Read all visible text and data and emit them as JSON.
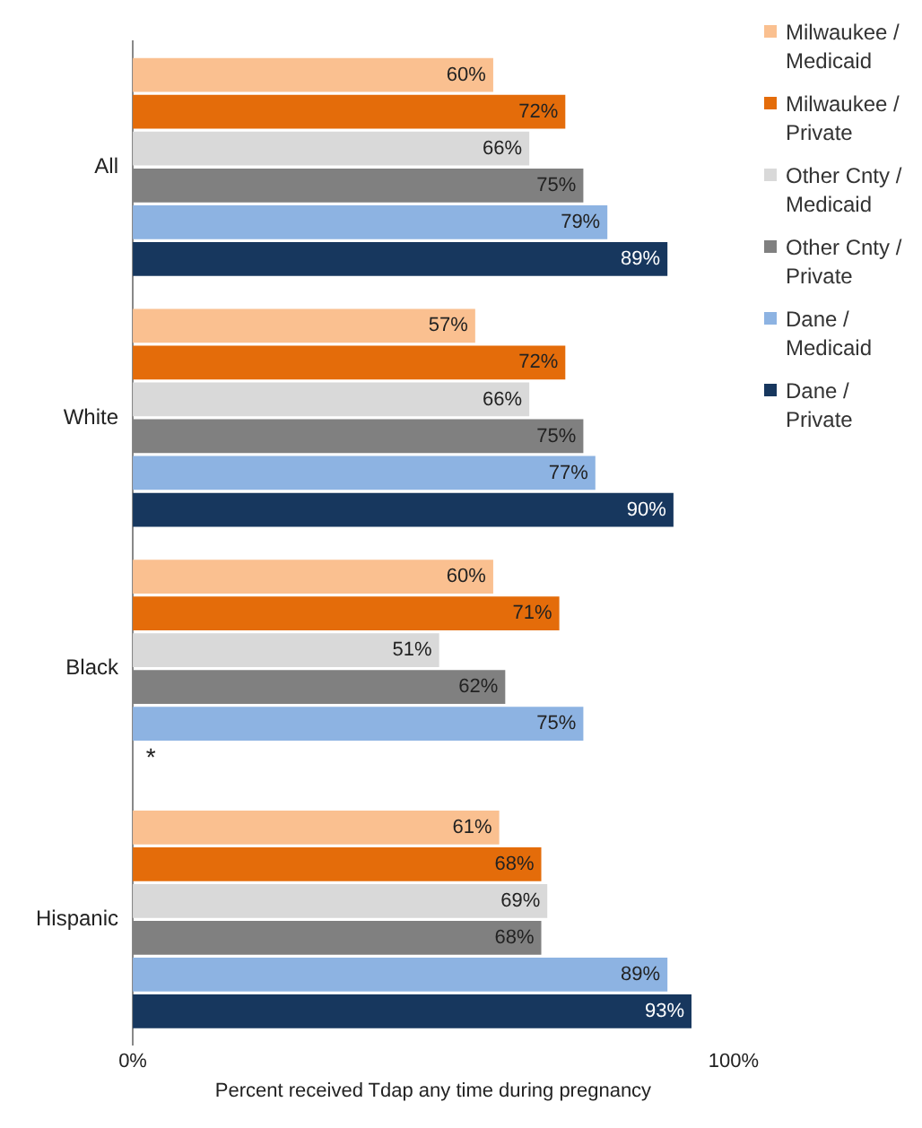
{
  "chart_data": {
    "type": "bar",
    "orientation": "horizontal",
    "categories": [
      "All",
      "White",
      "Black",
      "Hispanic"
    ],
    "xlabel": "Percent received Tdap any time during pregnancy",
    "xlim": [
      0,
      100
    ],
    "xticks": [
      {
        "value": 0,
        "label": "0%"
      },
      {
        "value": 100,
        "label": "100%"
      }
    ],
    "grid": false,
    "legend": "right",
    "series": [
      {
        "name": "Milwaukee / Medicaid",
        "color": "#fac090",
        "values": [
          60,
          57,
          60,
          61
        ],
        "value_labels": [
          "60%",
          "57%",
          "60%",
          "61%"
        ]
      },
      {
        "name": "Milwaukee / Private",
        "color": "#e46c0a",
        "values": [
          72,
          72,
          71,
          68
        ],
        "value_labels": [
          "72%",
          "72%",
          "71%",
          "68%"
        ]
      },
      {
        "name": "Other Cnty / Medicaid",
        "color": "#d9d9d9",
        "values": [
          66,
          66,
          51,
          69
        ],
        "value_labels": [
          "66%",
          "66%",
          "51%",
          "69%"
        ]
      },
      {
        "name": "Other Cnty / Private",
        "color": "#808080",
        "values": [
          75,
          75,
          62,
          68
        ],
        "value_labels": [
          "75%",
          "75%",
          "62%",
          "68%"
        ]
      },
      {
        "name": "Dane / Medicaid",
        "color": "#8db3e2",
        "values": [
          79,
          77,
          75,
          89
        ],
        "value_labels": [
          "79%",
          "77%",
          "75%",
          "89%"
        ]
      },
      {
        "name": "Dane / Private",
        "color": "#17375e",
        "values": [
          89,
          90,
          null,
          93
        ],
        "value_labels": [
          "89%",
          "90%",
          null,
          "93%"
        ]
      }
    ],
    "annotations": [
      {
        "text": "*",
        "x": 3,
        "y": "Black"
      }
    ]
  }
}
